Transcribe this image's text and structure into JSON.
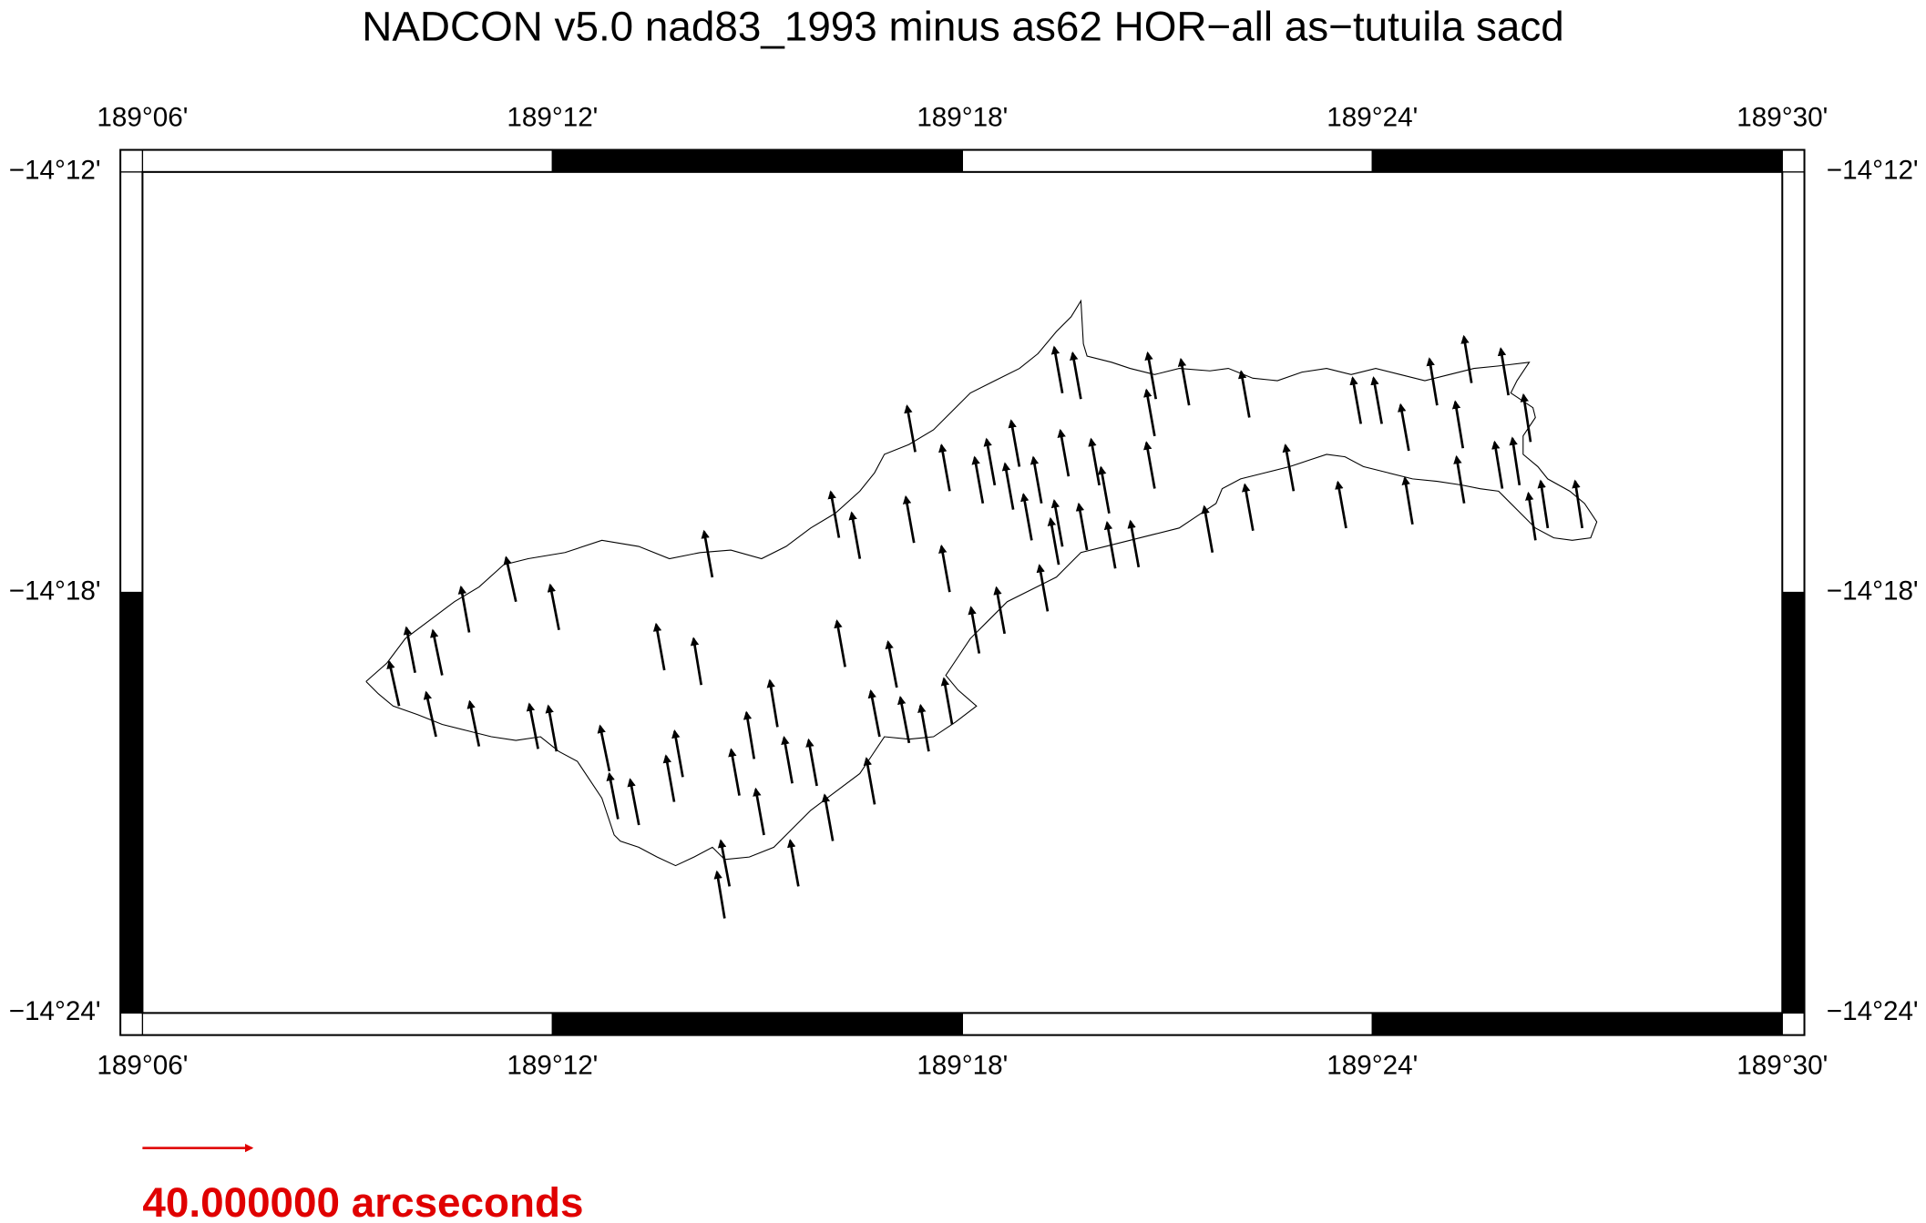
{
  "chart_data": {
    "type": "vector",
    "title": "NADCON v5.0 nad83_1993 minus as62 HOR−all  as−tutuila sacd",
    "xlim": [
      189.1,
      189.5
    ],
    "ylim": [
      -14.4,
      -14.2
    ],
    "xticks": [
      {
        "value": 189.1,
        "label": "189°06'"
      },
      {
        "value": 189.2,
        "label": "189°12'"
      },
      {
        "value": 189.3,
        "label": "189°18'"
      },
      {
        "value": 189.4,
        "label": "189°24'"
      },
      {
        "value": 189.5,
        "label": "189°30'"
      }
    ],
    "yticks": [
      {
        "value": -14.2,
        "label": "−14°12'"
      },
      {
        "value": -14.3,
        "label": "−14°18'"
      },
      {
        "value": -14.4,
        "label": "−14°24'"
      }
    ],
    "color": "#000000",
    "x": [
      189.1626,
      189.1665,
      189.1731,
      189.1716,
      189.1797,
      189.1821,
      189.1911,
      189.1965,
      189.201,
      189.2016,
      189.2273,
      189.2363,
      189.239,
      189.2139,
      189.216,
      189.2211,
      189.2297,
      189.2318,
      189.242,
      189.2432,
      189.2456,
      189.2492,
      189.2516,
      189.2549,
      189.2585,
      189.26,
      189.2645,
      189.2684,
      189.2714,
      189.275,
      189.2699,
      189.2786,
      189.2798,
      189.284,
      189.287,
      189.2918,
      189.2975,
      189.2882,
      189.2885,
      189.2969,
      189.2969,
      189.3041,
      189.3103,
      189.3208,
      189.3304,
      189.3373,
      189.343,
      189.3469,
      189.3469,
      189.3472,
      189.3553,
      189.37,
      189.361,
      189.3709,
      189.3808,
      189.3936,
      189.3972,
      189.4023,
      189.4089,
      189.4098,
      189.4158,
      189.4221,
      189.4224,
      189.4242,
      189.4332,
      189.4317,
      189.4359,
      189.4386,
      189.4398,
      189.4428,
      189.4512,
      189.3244,
      189.3169,
      189.3259,
      189.3193,
      189.3124,
      189.3079,
      189.3289,
      189.3244,
      189.3334,
      189.3358,
      189.3235,
      189.305,
      189.3139
    ],
    "y": [
      -14.327,
      -14.3191,
      -14.3197,
      -14.3343,
      -14.3095,
      -14.3366,
      -14.3022,
      -14.3372,
      -14.3378,
      -14.3089,
      -14.3185,
      -14.322,
      -14.2964,
      -14.3425,
      -14.3539,
      -14.3553,
      -14.3498,
      -14.3439,
      -14.3775,
      -14.3699,
      -14.3483,
      -14.3396,
      -14.3577,
      -14.332,
      -14.3454,
      -14.3699,
      -14.346,
      -14.3591,
      -14.3177,
      -14.292,
      -14.287,
      -14.3504,
      -14.3343,
      -14.3226,
      -14.3358,
      -14.3378,
      -14.3314,
      -14.2882,
      -14.2666,
      -14.2999,
      -14.2759,
      -14.3145,
      -14.3098,
      -14.3045,
      -14.2899,
      -14.2943,
      -14.294,
      -14.2753,
      -14.2628,
      -14.254,
      -14.2555,
      -14.2584,
      -14.2905,
      -14.2853,
      -14.2759,
      -14.2847,
      -14.2599,
      -14.2599,
      -14.2663,
      -14.2838,
      -14.2555,
      -14.2657,
      -14.2788,
      -14.2502,
      -14.2531,
      -14.2753,
      -14.2745,
      -14.2642,
      -14.2876,
      -14.2847,
      -14.2847,
      -14.2891,
      -14.2876,
      -14.2724,
      -14.2788,
      -14.2803,
      -14.2745,
      -14.254,
      -14.2526,
      -14.2745,
      -14.2812,
      -14.2934,
      -14.2788,
      -14.2701
    ],
    "u": [
      -3.6,
      -3.2,
      -3.4,
      -3.6,
      -3.0,
      -3.4,
      -3.6,
      -3.2,
      -3.0,
      -3.2,
      -3.0,
      -2.8,
      -3.0,
      -3.4,
      -3.2,
      -3.2,
      -3.0,
      -3.0,
      -2.8,
      -3.2,
      -3.0,
      -2.8,
      -3.0,
      -2.8,
      -3.0,
      -3.0,
      -3.0,
      -3.0,
      -3.0,
      -3.0,
      -3.0,
      -3.0,
      -3.2,
      -3.2,
      -3.2,
      -3.0,
      -3.0,
      -3.0,
      -3.0,
      -3.0,
      -3.0,
      -3.0,
      -3.0,
      -3.0,
      -3.0,
      -3.0,
      -3.0,
      -3.0,
      -3.0,
      -3.0,
      -3.0,
      -3.0,
      -3.0,
      -3.0,
      -3.0,
      -3.0,
      -3.0,
      -3.0,
      -3.0,
      -2.8,
      -2.8,
      -2.8,
      -2.8,
      -2.8,
      -2.8,
      -2.8,
      -2.6,
      -2.6,
      -2.6,
      -2.6,
      -2.6,
      -3.0,
      -3.0,
      -3.0,
      -3.0,
      -3.0,
      -3.0,
      -3.0,
      -3.0,
      -3.0,
      -3.0,
      -3.0,
      -3.0,
      -3.0
    ],
    "v": [
      16.2,
      16.5,
      16.4,
      16.2,
      16.6,
      16.4,
      16.2,
      16.4,
      16.6,
      16.4,
      16.8,
      17.0,
      16.8,
      16.5,
      16.6,
      16.6,
      16.8,
      16.8,
      17.0,
      16.7,
      16.8,
      17.0,
      16.8,
      17.0,
      16.8,
      16.8,
      16.8,
      16.8,
      16.8,
      16.8,
      16.8,
      16.8,
      16.7,
      16.7,
      16.7,
      16.8,
      16.8,
      16.8,
      16.8,
      16.8,
      16.8,
      16.8,
      16.8,
      16.8,
      16.8,
      16.8,
      16.8,
      16.8,
      16.8,
      16.8,
      16.8,
      16.8,
      16.8,
      16.8,
      16.8,
      16.8,
      16.8,
      16.8,
      16.8,
      17.0,
      17.0,
      17.0,
      17.0,
      17.0,
      17.0,
      17.0,
      17.2,
      17.2,
      17.2,
      17.2,
      17.2,
      16.8,
      16.8,
      16.8,
      16.8,
      16.8,
      16.8,
      16.8,
      16.8,
      16.8,
      16.8,
      16.8,
      16.8,
      16.8
    ],
    "scale": {
      "value": 40,
      "label": "40.000000 arcseconds",
      "color": "#e00000"
    }
  }
}
